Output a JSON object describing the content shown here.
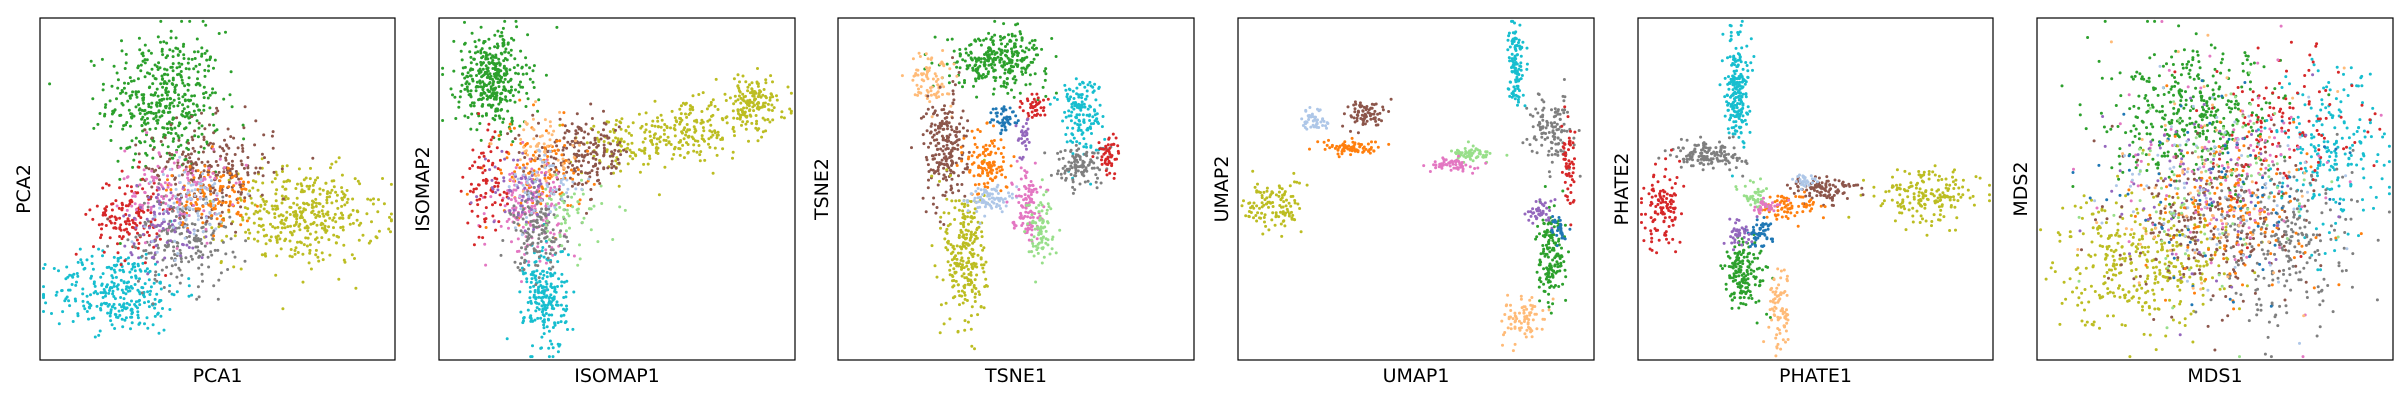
{
  "palette": {
    "blue": "#1f77b4",
    "lightblue": "#aec7e8",
    "orange": "#ff7f0e",
    "peach": "#ffbb78",
    "green": "#2ca02c",
    "lightgreen": "#98df8a",
    "red": "#d62728",
    "purple": "#9467bd",
    "brown": "#8c564b",
    "pink": "#e377c2",
    "gray": "#7f7f7f",
    "olive": "#bcbd22",
    "cyan": "#17becf"
  },
  "chart_data": [
    {
      "type": "scatter",
      "xlabel": "PCA1",
      "ylabel": "PCA2",
      "xticks": [],
      "yticks": [],
      "grid": false,
      "clusters": [
        {
          "color": "green",
          "cx": 0.35,
          "cy": 0.76,
          "sx": 0.08,
          "sy": 0.1,
          "n": 450
        },
        {
          "color": "olive",
          "cx": 0.74,
          "cy": 0.42,
          "sx": 0.11,
          "sy": 0.07,
          "n": 400
        },
        {
          "color": "cyan",
          "cx": 0.22,
          "cy": 0.2,
          "sx": 0.09,
          "sy": 0.06,
          "n": 300
        },
        {
          "color": "brown",
          "cx": 0.48,
          "cy": 0.56,
          "sx": 0.09,
          "sy": 0.07,
          "n": 250
        },
        {
          "color": "red",
          "cx": 0.25,
          "cy": 0.42,
          "sx": 0.05,
          "sy": 0.06,
          "n": 150
        },
        {
          "color": "gray",
          "cx": 0.4,
          "cy": 0.35,
          "sx": 0.07,
          "sy": 0.07,
          "n": 200
        },
        {
          "color": "orange",
          "cx": 0.48,
          "cy": 0.48,
          "sx": 0.06,
          "sy": 0.05,
          "n": 120
        },
        {
          "color": "pink",
          "cx": 0.38,
          "cy": 0.5,
          "sx": 0.07,
          "sy": 0.06,
          "n": 120
        },
        {
          "color": "purple",
          "cx": 0.35,
          "cy": 0.4,
          "sx": 0.06,
          "sy": 0.06,
          "n": 80
        },
        {
          "color": "lightblue",
          "cx": 0.42,
          "cy": 0.45,
          "sx": 0.06,
          "sy": 0.06,
          "n": 80
        }
      ]
    },
    {
      "type": "scatter",
      "xlabel": "ISOMAP1",
      "ylabel": "ISOMAP2",
      "xticks": [],
      "yticks": [],
      "grid": false,
      "clusters": [
        {
          "color": "green",
          "cx": 0.15,
          "cy": 0.82,
          "sx": 0.05,
          "sy": 0.07,
          "n": 380
        },
        {
          "color": "olive",
          "cx": 0.88,
          "cy": 0.75,
          "sx": 0.05,
          "sy": 0.04,
          "n": 160
        },
        {
          "color": "olive",
          "cx": 0.7,
          "cy": 0.67,
          "sx": 0.08,
          "sy": 0.04,
          "n": 180
        },
        {
          "color": "olive",
          "cx": 0.52,
          "cy": 0.62,
          "sx": 0.06,
          "sy": 0.04,
          "n": 100
        },
        {
          "color": "brown",
          "cx": 0.4,
          "cy": 0.6,
          "sx": 0.07,
          "sy": 0.05,
          "n": 200
        },
        {
          "color": "orange",
          "cx": 0.28,
          "cy": 0.55,
          "sx": 0.06,
          "sy": 0.07,
          "n": 120
        },
        {
          "color": "pink",
          "cx": 0.25,
          "cy": 0.45,
          "sx": 0.05,
          "sy": 0.07,
          "n": 160
        },
        {
          "color": "cyan",
          "cx": 0.3,
          "cy": 0.18,
          "sx": 0.03,
          "sy": 0.08,
          "n": 220
        },
        {
          "color": "gray",
          "cx": 0.28,
          "cy": 0.38,
          "sx": 0.04,
          "sy": 0.06,
          "n": 150
        },
        {
          "color": "red",
          "cx": 0.13,
          "cy": 0.5,
          "sx": 0.03,
          "sy": 0.08,
          "n": 80
        },
        {
          "color": "lightgreen",
          "cx": 0.36,
          "cy": 0.42,
          "sx": 0.05,
          "sy": 0.05,
          "n": 60
        },
        {
          "color": "peach",
          "cx": 0.3,
          "cy": 0.62,
          "sx": 0.05,
          "sy": 0.05,
          "n": 60
        },
        {
          "color": "purple",
          "cx": 0.22,
          "cy": 0.5,
          "sx": 0.05,
          "sy": 0.06,
          "n": 60
        },
        {
          "color": "lightblue",
          "cx": 0.3,
          "cy": 0.5,
          "sx": 0.05,
          "sy": 0.06,
          "n": 60
        }
      ]
    },
    {
      "type": "scatter",
      "xlabel": "TSNE1",
      "ylabel": "TSNE2",
      "xticks": [],
      "yticks": [],
      "grid": false,
      "clusters": [
        {
          "color": "green",
          "cx": 0.45,
          "cy": 0.88,
          "sx": 0.07,
          "sy": 0.04,
          "n": 300
        },
        {
          "color": "peach",
          "cx": 0.26,
          "cy": 0.82,
          "sx": 0.03,
          "sy": 0.04,
          "n": 80
        },
        {
          "color": "brown",
          "cx": 0.3,
          "cy": 0.62,
          "sx": 0.03,
          "sy": 0.08,
          "n": 220
        },
        {
          "color": "olive",
          "cx": 0.36,
          "cy": 0.3,
          "sx": 0.03,
          "sy": 0.11,
          "n": 260
        },
        {
          "color": "orange",
          "cx": 0.42,
          "cy": 0.58,
          "sx": 0.03,
          "sy": 0.05,
          "n": 120
        },
        {
          "color": "lightblue",
          "cx": 0.42,
          "cy": 0.47,
          "sx": 0.03,
          "sy": 0.02,
          "n": 80
        },
        {
          "color": "pink",
          "cx": 0.53,
          "cy": 0.46,
          "sx": 0.02,
          "sy": 0.05,
          "n": 110
        },
        {
          "color": "lightgreen",
          "cx": 0.57,
          "cy": 0.38,
          "sx": 0.02,
          "sy": 0.05,
          "n": 80
        },
        {
          "color": "cyan",
          "cx": 0.68,
          "cy": 0.72,
          "sx": 0.03,
          "sy": 0.06,
          "n": 150
        },
        {
          "color": "gray",
          "cx": 0.68,
          "cy": 0.57,
          "sx": 0.04,
          "sy": 0.03,
          "n": 110
        },
        {
          "color": "red",
          "cx": 0.76,
          "cy": 0.6,
          "sx": 0.015,
          "sy": 0.03,
          "n": 50
        },
        {
          "color": "blue",
          "cx": 0.47,
          "cy": 0.7,
          "sx": 0.02,
          "sy": 0.02,
          "n": 50
        },
        {
          "color": "red",
          "cx": 0.55,
          "cy": 0.74,
          "sx": 0.02,
          "sy": 0.02,
          "n": 40
        },
        {
          "color": "purple",
          "cx": 0.52,
          "cy": 0.65,
          "sx": 0.01,
          "sy": 0.03,
          "n": 30
        }
      ]
    },
    {
      "type": "scatter",
      "xlabel": "UMAP1",
      "ylabel": "UMAP2",
      "xticks": [],
      "yticks": [],
      "grid": false,
      "clusters": [
        {
          "color": "olive",
          "cx": 0.1,
          "cy": 0.45,
          "sx": 0.04,
          "sy": 0.04,
          "n": 120
        },
        {
          "color": "lightblue",
          "cx": 0.22,
          "cy": 0.7,
          "sx": 0.02,
          "sy": 0.02,
          "n": 50
        },
        {
          "color": "brown",
          "cx": 0.36,
          "cy": 0.72,
          "sx": 0.03,
          "sy": 0.02,
          "n": 80
        },
        {
          "color": "orange",
          "cx": 0.32,
          "cy": 0.62,
          "sx": 0.04,
          "sy": 0.01,
          "n": 80
        },
        {
          "color": "lightgreen",
          "cx": 0.66,
          "cy": 0.6,
          "sx": 0.03,
          "sy": 0.01,
          "n": 60
        },
        {
          "color": "pink",
          "cx": 0.6,
          "cy": 0.57,
          "sx": 0.03,
          "sy": 0.01,
          "n": 60
        },
        {
          "color": "cyan",
          "cx": 0.78,
          "cy": 0.87,
          "sx": 0.01,
          "sy": 0.06,
          "n": 120
        },
        {
          "color": "gray",
          "cx": 0.88,
          "cy": 0.68,
          "sx": 0.03,
          "sy": 0.05,
          "n": 120
        },
        {
          "color": "red",
          "cx": 0.93,
          "cy": 0.55,
          "sx": 0.01,
          "sy": 0.06,
          "n": 60
        },
        {
          "color": "green",
          "cx": 0.88,
          "cy": 0.3,
          "sx": 0.02,
          "sy": 0.07,
          "n": 160
        },
        {
          "color": "peach",
          "cx": 0.8,
          "cy": 0.12,
          "sx": 0.03,
          "sy": 0.03,
          "n": 80
        },
        {
          "color": "purple",
          "cx": 0.85,
          "cy": 0.43,
          "sx": 0.02,
          "sy": 0.02,
          "n": 40
        },
        {
          "color": "blue",
          "cx": 0.9,
          "cy": 0.38,
          "sx": 0.01,
          "sy": 0.02,
          "n": 30
        }
      ]
    },
    {
      "type": "scatter",
      "xlabel": "PHATE1",
      "ylabel": "PHATE2",
      "xticks": [],
      "yticks": [],
      "grid": false,
      "clusters": [
        {
          "color": "cyan",
          "cx": 0.28,
          "cy": 0.8,
          "sx": 0.015,
          "sy": 0.08,
          "n": 220
        },
        {
          "color": "gray",
          "cx": 0.2,
          "cy": 0.6,
          "sx": 0.05,
          "sy": 0.02,
          "n": 140
        },
        {
          "color": "red",
          "cx": 0.07,
          "cy": 0.45,
          "sx": 0.03,
          "sy": 0.06,
          "n": 120
        },
        {
          "color": "green",
          "cx": 0.3,
          "cy": 0.25,
          "sx": 0.03,
          "sy": 0.05,
          "n": 160
        },
        {
          "color": "peach",
          "cx": 0.4,
          "cy": 0.15,
          "sx": 0.015,
          "sy": 0.06,
          "n": 80
        },
        {
          "color": "olive",
          "cx": 0.82,
          "cy": 0.48,
          "sx": 0.07,
          "sy": 0.04,
          "n": 180
        },
        {
          "color": "brown",
          "cx": 0.52,
          "cy": 0.5,
          "sx": 0.05,
          "sy": 0.02,
          "n": 100
        },
        {
          "color": "orange",
          "cx": 0.42,
          "cy": 0.45,
          "sx": 0.04,
          "sy": 0.02,
          "n": 80
        },
        {
          "color": "blue",
          "cx": 0.34,
          "cy": 0.37,
          "sx": 0.02,
          "sy": 0.02,
          "n": 50
        },
        {
          "color": "purple",
          "cx": 0.28,
          "cy": 0.37,
          "sx": 0.02,
          "sy": 0.02,
          "n": 40
        },
        {
          "color": "lightgreen",
          "cx": 0.33,
          "cy": 0.48,
          "sx": 0.02,
          "sy": 0.02,
          "n": 40
        },
        {
          "color": "pink",
          "cx": 0.36,
          "cy": 0.45,
          "sx": 0.02,
          "sy": 0.01,
          "n": 30
        },
        {
          "color": "lightblue",
          "cx": 0.47,
          "cy": 0.52,
          "sx": 0.02,
          "sy": 0.01,
          "n": 30
        }
      ]
    },
    {
      "type": "scatter",
      "xlabel": "MDS1",
      "ylabel": "MDS2",
      "xticks": [],
      "yticks": [],
      "grid": false,
      "clusters": [
        {
          "color": "green",
          "cx": 0.45,
          "cy": 0.7,
          "sx": 0.12,
          "sy": 0.1,
          "n": 400
        },
        {
          "color": "olive",
          "cx": 0.3,
          "cy": 0.3,
          "sx": 0.12,
          "sy": 0.1,
          "n": 380
        },
        {
          "color": "cyan",
          "cx": 0.82,
          "cy": 0.6,
          "sx": 0.08,
          "sy": 0.12,
          "n": 220
        },
        {
          "color": "brown",
          "cx": 0.5,
          "cy": 0.4,
          "sx": 0.12,
          "sy": 0.12,
          "n": 250
        },
        {
          "color": "gray",
          "cx": 0.7,
          "cy": 0.35,
          "sx": 0.1,
          "sy": 0.12,
          "n": 250
        },
        {
          "color": "orange",
          "cx": 0.55,
          "cy": 0.45,
          "sx": 0.12,
          "sy": 0.12,
          "n": 150
        },
        {
          "color": "red",
          "cx": 0.7,
          "cy": 0.7,
          "sx": 0.1,
          "sy": 0.1,
          "n": 120
        },
        {
          "color": "pink",
          "cx": 0.55,
          "cy": 0.55,
          "sx": 0.15,
          "sy": 0.15,
          "n": 120
        },
        {
          "color": "blue",
          "cx": 0.5,
          "cy": 0.5,
          "sx": 0.15,
          "sy": 0.15,
          "n": 80
        },
        {
          "color": "purple",
          "cx": 0.45,
          "cy": 0.5,
          "sx": 0.15,
          "sy": 0.15,
          "n": 80
        },
        {
          "color": "lightblue",
          "cx": 0.5,
          "cy": 0.5,
          "sx": 0.15,
          "sy": 0.15,
          "n": 80
        },
        {
          "color": "lightgreen",
          "cx": 0.5,
          "cy": 0.5,
          "sx": 0.15,
          "sy": 0.15,
          "n": 80
        },
        {
          "color": "peach",
          "cx": 0.5,
          "cy": 0.5,
          "sx": 0.15,
          "sy": 0.15,
          "n": 80
        }
      ]
    }
  ]
}
